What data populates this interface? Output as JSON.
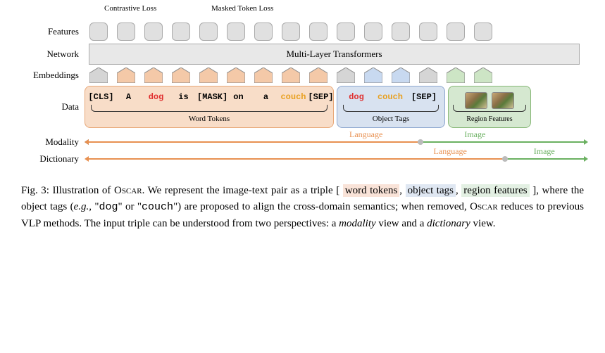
{
  "loss_labels": {
    "contrastive": "Contrastive Loss",
    "masked": "Masked Token Loss"
  },
  "row_labels": {
    "features": "Features",
    "network": "Network",
    "embeddings": "Embeddings",
    "data": "Data",
    "modality": "Modality",
    "dictionary": "Dictionary"
  },
  "network_text": "Multi-Layer Transformers",
  "colors": {
    "feature_fill": "#e0e0e0",
    "feature_border": "#aaaaaa",
    "gray_embed": "#d5d5d5",
    "orange_embed": "#f4c9a8",
    "blue_embed": "#c8d9f0",
    "green_embed": "#cde5c5",
    "word_region_fill": "#f8ddc8",
    "word_region_border": "#e8a878",
    "object_region_fill": "#d8e2f0",
    "object_region_border": "#8fa8d0",
    "region_feat_fill": "#d5e8d0",
    "region_feat_border": "#88b878",
    "dog_color": "#e03030",
    "couch_color": "#e8a020",
    "axis_orange": "#e89050",
    "axis_green": "#6ab060"
  },
  "tokens": {
    "word": [
      "[CLS]",
      "A",
      "dog",
      "is",
      "[MASK]",
      "on",
      "a",
      "couch",
      "[SEP]"
    ],
    "word_colors": [
      "#000",
      "#000",
      "#e03030",
      "#000",
      "#000",
      "#000",
      "#000",
      "#e8a020",
      "#000"
    ],
    "object": [
      "dog",
      "couch",
      "[SEP]"
    ],
    "object_colors": [
      "#e03030",
      "#e8a020",
      "#000"
    ]
  },
  "region_labels": {
    "word": "Word Tokens",
    "object": "Object Tags",
    "region": "Region Features"
  },
  "axis_labels": {
    "language": "Language",
    "image": "Image"
  },
  "embed_colors": [
    "gray",
    "orange",
    "orange",
    "orange",
    "orange",
    "orange",
    "orange",
    "orange",
    "orange",
    "gray",
    "blue",
    "blue",
    "gray",
    "green",
    "green"
  ],
  "caption": {
    "fignum": "Fig. 3:",
    "p1": "Illustration of",
    "oscar": "Oscar",
    "p2": ". We represent the image-text pair as a triple [",
    "wt": "word tokens",
    "sep": ",",
    "ot": "object tags",
    "rf": "region features",
    "p3": "], where the object tags (",
    "eg": "e.g.,",
    "p4": " \"",
    "dog": "dog",
    "p5": "\" or \"",
    "couch": "couch",
    "p6": "\") are proposed to align the cross-domain semantics; when removed,",
    "p7": " reduces to previous VLP methods. The input triple can be understood from two perspectives: a ",
    "modality": "modality",
    "p8": " view and a ",
    "dictionary": "dictionary",
    "p9": " view."
  }
}
